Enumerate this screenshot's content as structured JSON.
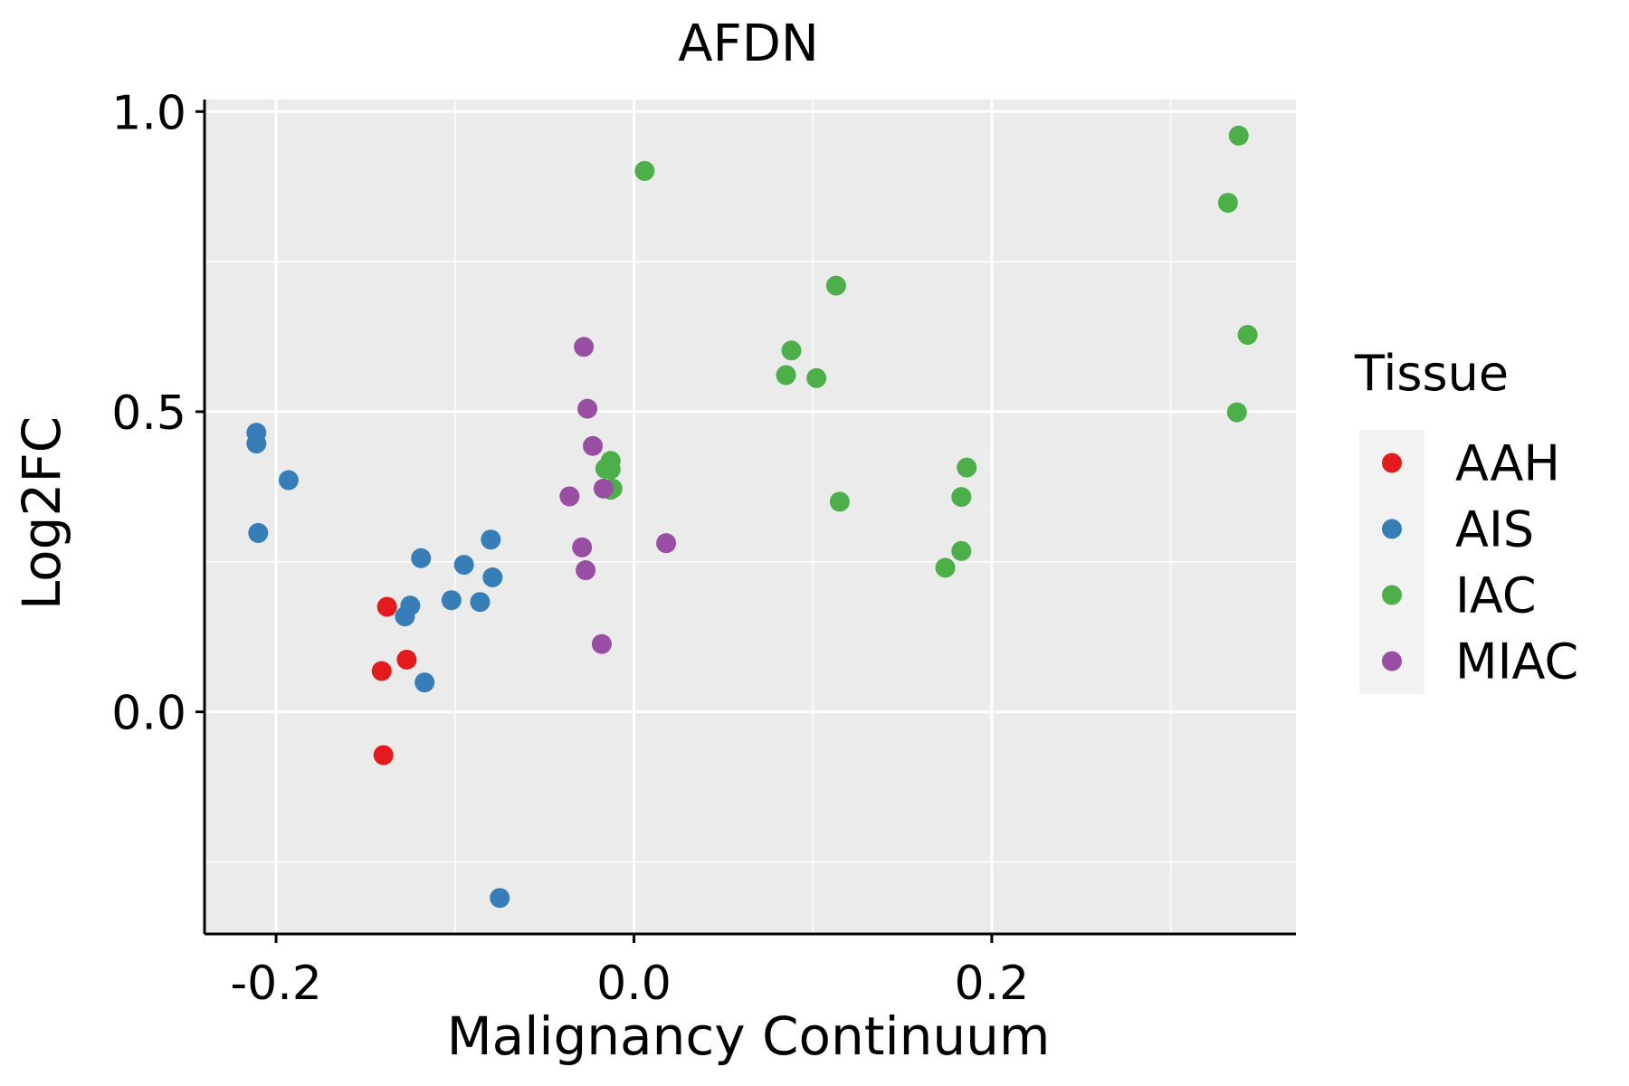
{
  "colors": {
    "panel": "#EBEBEB",
    "grid": "#FFFFFF",
    "axis": "#000000",
    "legend_key_bg": "#F2F2F2"
  },
  "chart_data": {
    "type": "scatter",
    "title": "AFDN",
    "xlabel": "Malignancy Continuum",
    "ylabel": "Log2FC",
    "xlim": [
      -0.24,
      0.37
    ],
    "ylim": [
      -0.37,
      1.02
    ],
    "x_ticks": [
      -0.2,
      0.0,
      0.2
    ],
    "x_tick_labels": [
      "-0.2",
      "0.0",
      "0.2"
    ],
    "y_ticks": [
      0.0,
      0.5,
      1.0
    ],
    "y_tick_labels": [
      "0.0",
      "0.5",
      "1.0"
    ],
    "x_minor": [
      -0.1,
      0.1,
      0.3
    ],
    "y_minor": [
      -0.25,
      0.25,
      0.75
    ],
    "grid": true,
    "legend": {
      "title": "Tissue",
      "placement": "right"
    },
    "series": [
      {
        "name": "AAH",
        "color": "#E41A1C",
        "points": [
          [
            -0.138,
            0.175
          ],
          [
            -0.141,
            0.068
          ],
          [
            -0.127,
            0.087
          ],
          [
            -0.14,
            -0.072
          ]
        ]
      },
      {
        "name": "AIS",
        "color": "#377EB8",
        "points": [
          [
            -0.211,
            0.465
          ],
          [
            -0.211,
            0.447
          ],
          [
            -0.193,
            0.386
          ],
          [
            -0.21,
            0.298
          ],
          [
            -0.119,
            0.256
          ],
          [
            -0.125,
            0.177
          ],
          [
            -0.128,
            0.159
          ],
          [
            -0.117,
            0.049
          ],
          [
            -0.095,
            0.245
          ],
          [
            -0.08,
            0.287
          ],
          [
            -0.079,
            0.224
          ],
          [
            -0.102,
            0.186
          ],
          [
            -0.086,
            0.183
          ],
          [
            -0.075,
            -0.31
          ]
        ]
      },
      {
        "name": "IAC",
        "color": "#4DAF4A",
        "points": [
          [
            0.006,
            0.901
          ],
          [
            -0.013,
            0.418
          ],
          [
            -0.016,
            0.405
          ],
          [
            -0.013,
            0.404
          ],
          [
            -0.012,
            0.372
          ],
          [
            -0.013,
            0.37
          ],
          [
            0.088,
            0.602
          ],
          [
            0.085,
            0.561
          ],
          [
            0.102,
            0.556
          ],
          [
            0.113,
            0.71
          ],
          [
            0.115,
            0.35
          ],
          [
            0.174,
            0.24
          ],
          [
            0.183,
            0.268
          ],
          [
            0.183,
            0.358
          ],
          [
            0.186,
            0.407
          ],
          [
            0.332,
            0.848
          ],
          [
            0.338,
            0.96
          ],
          [
            0.343,
            0.628
          ],
          [
            0.337,
            0.499
          ]
        ]
      },
      {
        "name": "MIAC",
        "color": "#984EA3",
        "points": [
          [
            -0.028,
            0.608
          ],
          [
            -0.026,
            0.505
          ],
          [
            -0.023,
            0.443
          ],
          [
            -0.036,
            0.359
          ],
          [
            -0.017,
            0.372
          ],
          [
            -0.029,
            0.274
          ],
          [
            -0.027,
            0.236
          ],
          [
            -0.018,
            0.113
          ],
          [
            0.018,
            0.281
          ]
        ]
      }
    ]
  }
}
